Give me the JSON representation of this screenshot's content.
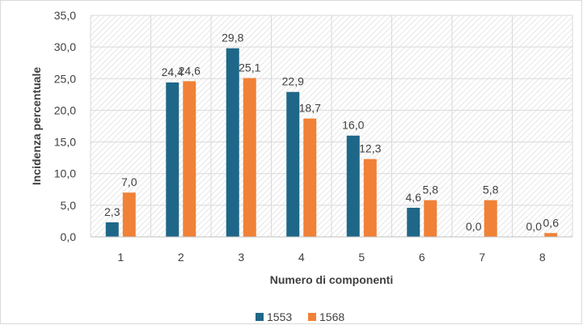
{
  "chart_data": {
    "type": "bar",
    "title": "",
    "xlabel": "Numero di componenti",
    "ylabel": "Incidenza percentuale",
    "categories": [
      "1",
      "2",
      "3",
      "4",
      "5",
      "6",
      "7",
      "8"
    ],
    "series": [
      {
        "name": "1553",
        "color": "#1f6788",
        "values": [
          2.3,
          24.4,
          29.8,
          22.9,
          16.0,
          4.6,
          0.0,
          0.0
        ],
        "labels": [
          "2,3",
          "24,4",
          "29,8",
          "22,9",
          "16,0",
          "4,6",
          "0,0",
          "0,0"
        ]
      },
      {
        "name": "1568",
        "color": "#f08137",
        "values": [
          7.0,
          24.6,
          25.1,
          18.7,
          12.3,
          5.8,
          5.8,
          0.6
        ],
        "labels": [
          "7,0",
          "24,6",
          "25,1",
          "18,7",
          "12,3",
          "5,8",
          "5,8",
          "0,6"
        ]
      }
    ],
    "ylim": [
      0,
      35
    ],
    "yticks": [
      "0,0",
      "5,0",
      "10,0",
      "15,0",
      "20,0",
      "25,0",
      "30,0",
      "35,0"
    ],
    "grid": true,
    "legend_position": "bottom"
  }
}
